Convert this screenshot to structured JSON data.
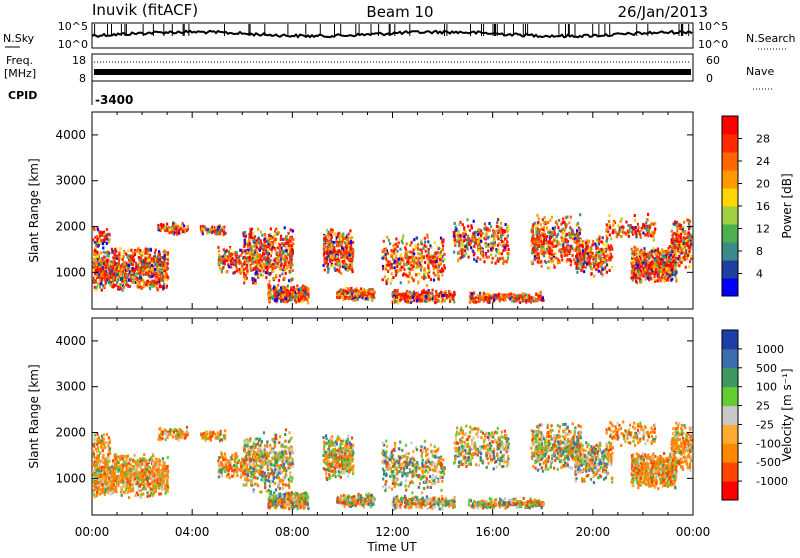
{
  "header": {
    "station": "Inuvik (fitACF)",
    "beam": "Beam 10",
    "date": "26/Jan/2013"
  },
  "status_panels": {
    "nsky_label": "N.Sky",
    "nsearch_label": "N.Search",
    "noise_ticks": [
      "10^5",
      "10^0"
    ],
    "freq_label": "Freq.",
    "freq_unit": "[MHz]",
    "freq_ticks": [
      "18",
      "8"
    ],
    "nave_label": "Nave",
    "nave_ticks": [
      "60",
      "0"
    ],
    "cpid_label": "CPID",
    "cpid_value": "-3400"
  },
  "chart_data": [
    {
      "type": "heatmap",
      "name": "power",
      "ylabel": "Slant Range [km]",
      "xlabel": "Time UT",
      "xlim": [
        0,
        24
      ],
      "ylim": [
        200,
        4500
      ],
      "x_ticks": [
        "00:00",
        "04:00",
        "08:00",
        "12:00",
        "16:00",
        "20:00",
        "00:00"
      ],
      "y_ticks": [
        1000,
        2000,
        3000,
        4000
      ],
      "colorbar": {
        "label": "Power [dB]",
        "ticks": [
          "28",
          "24",
          "20",
          "16",
          "12",
          "8",
          "4"
        ],
        "range": [
          0,
          32
        ],
        "colors": [
          "#0000ff",
          "#1f3f9e",
          "#3d8a8a",
          "#4caf50",
          "#a0d040",
          "#ffd700",
          "#ff9900",
          "#ff6600",
          "#ff2a00",
          "#ff0000"
        ]
      }
    },
    {
      "type": "heatmap",
      "name": "velocity",
      "ylabel": "Slant Range [km]",
      "xlabel": "Time UT",
      "xlim": [
        0,
        24
      ],
      "ylim": [
        200,
        4500
      ],
      "x_ticks": [
        "00:00",
        "04:00",
        "08:00",
        "12:00",
        "16:00",
        "20:00",
        "00:00"
      ],
      "y_ticks": [
        1000,
        2000,
        3000,
        4000
      ],
      "colorbar": {
        "label": "Velocity [m s⁻¹]",
        "ticks": [
          "1000",
          "500",
          "100",
          "25",
          "-25",
          "-100",
          "-500",
          "-1000"
        ],
        "range": [
          -1200,
          1200
        ],
        "colors": [
          "#ff0000",
          "#ff4400",
          "#ff8800",
          "#ffaa33",
          "#c8c8c8",
          "#66cc33",
          "#3d9960",
          "#3f6eae",
          "#1e3fa8"
        ]
      }
    }
  ]
}
